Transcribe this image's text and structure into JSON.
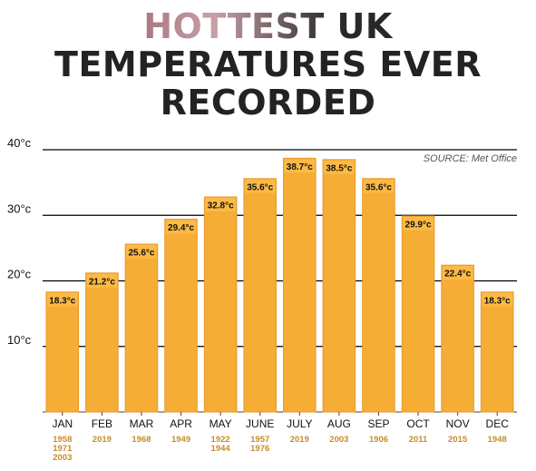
{
  "title_lines": [
    "HOTTEST UK",
    "TEMPERATURES EVER",
    "RECORDED"
  ],
  "colors": {
    "bar": "#f5ad35",
    "bar_border": "#e8992a",
    "label_bg": "#fcba45",
    "year": "#c58d2a",
    "grid": "#000000",
    "text": "#111111"
  },
  "chart_data": {
    "type": "bar",
    "title": "HOTTEST UK TEMPERATURES EVER RECORDED",
    "source": "SOURCE: Met Office",
    "ylim": [
      0,
      40
    ],
    "y_ticks": [
      10,
      20,
      30,
      40
    ],
    "y_tick_labels": [
      "10°c",
      "20°c",
      "30°c",
      "40°c"
    ],
    "grid": true,
    "categories": [
      "JAN",
      "FEB",
      "MAR",
      "APR",
      "MAY",
      "JUNE",
      "JULY",
      "AUG",
      "SEP",
      "OCT",
      "NOV",
      "DEC"
    ],
    "values": [
      18.3,
      21.2,
      25.6,
      29.4,
      32.8,
      35.6,
      38.7,
      38.5,
      35.6,
      29.9,
      22.4,
      18.3
    ],
    "value_labels": [
      "18.3°c",
      "21.2°c",
      "25.6°c",
      "29.4°c",
      "32.8°c",
      "35.6°c",
      "38.7°c",
      "38.5°c",
      "35.6°c",
      "29.9°c",
      "22.4°c",
      "18.3°c"
    ],
    "years": [
      [
        "1958",
        "1971",
        "2003"
      ],
      [
        "2019"
      ],
      [
        "1968"
      ],
      [
        "1949"
      ],
      [
        "1922",
        "1944"
      ],
      [
        "1957",
        "1976"
      ],
      [
        "2019"
      ],
      [
        "2003"
      ],
      [
        "1906"
      ],
      [
        "2011"
      ],
      [
        "2015"
      ],
      [
        "1948"
      ]
    ]
  }
}
